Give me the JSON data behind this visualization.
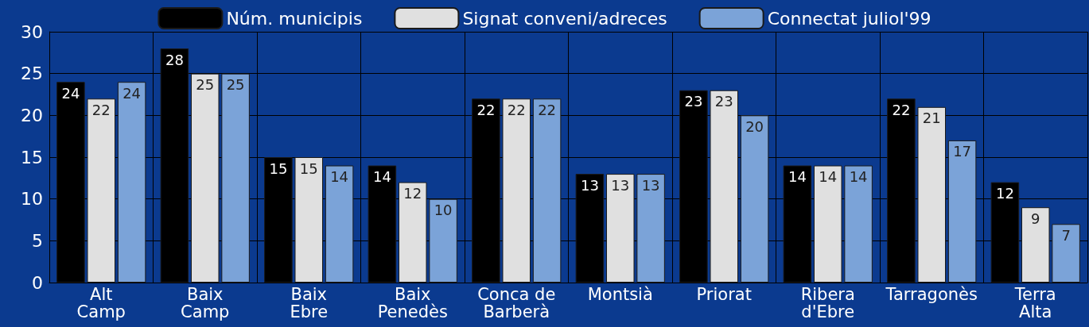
{
  "chart_data": {
    "type": "bar",
    "categories": [
      "Alt\nCamp",
      "Baix\nCamp",
      "Baix\nEbre",
      "Baix\nPenedès",
      "Conca de\nBarberà",
      "Montsià",
      "Priorat",
      "Ribera\nd'Ebre",
      "Tarragonès",
      "Terra\nAlta"
    ],
    "series": [
      {
        "name": "Núm. municipis",
        "color": "#000000",
        "values": [
          24,
          28,
          15,
          14,
          22,
          13,
          23,
          14,
          22,
          12
        ]
      },
      {
        "name": "Signat conveni/adreces",
        "color": "#e0e0e0",
        "values": [
          22,
          25,
          15,
          12,
          22,
          13,
          23,
          14,
          21,
          9
        ]
      },
      {
        "name": "Connectat juliol'99",
        "color": "#7ba3d8",
        "values": [
          24,
          25,
          14,
          10,
          22,
          13,
          20,
          14,
          17,
          7
        ]
      }
    ],
    "ylim": [
      0,
      30
    ],
    "yticks": [
      0,
      5,
      10,
      15,
      20,
      25,
      30
    ],
    "grid": true,
    "legend": "top",
    "data_labels": true
  }
}
